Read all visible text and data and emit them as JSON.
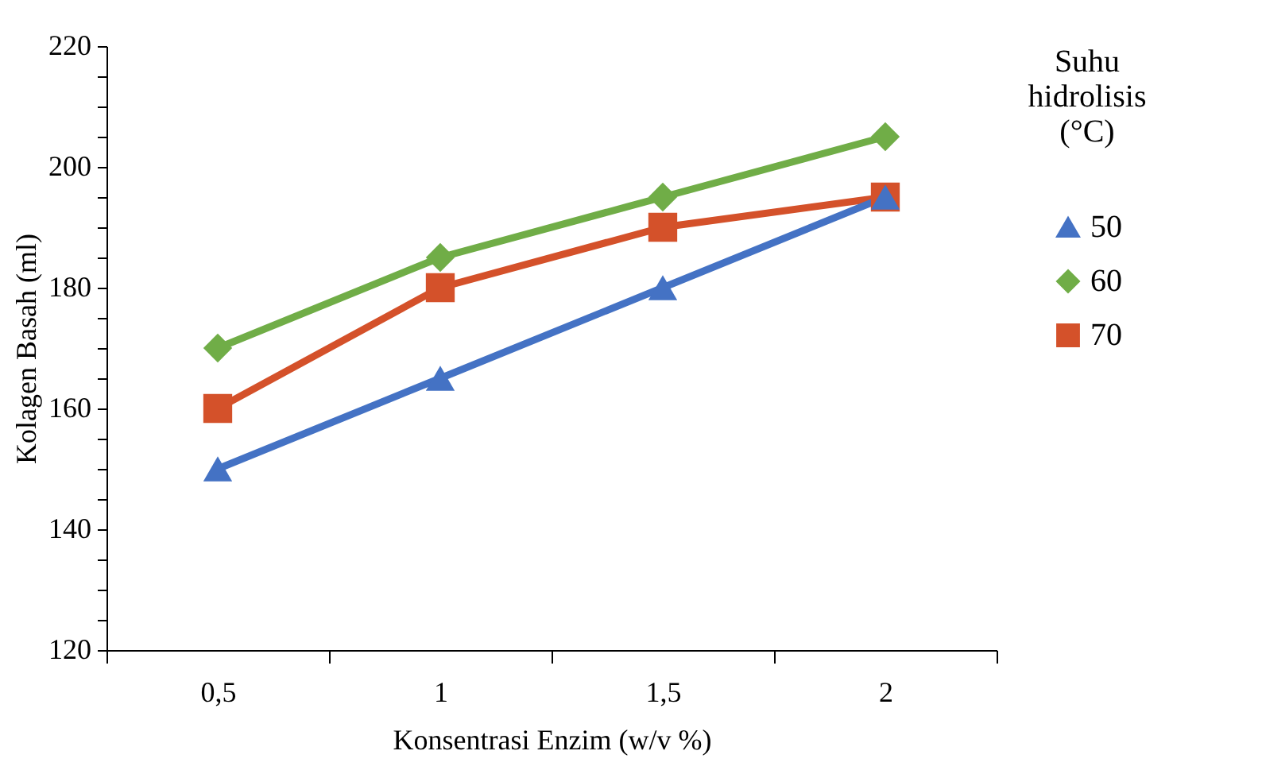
{
  "chart_data": {
    "type": "line",
    "xlabel": "Konsentrasi Enzim (w/v %)",
    "ylabel": "Kolagen Basah (ml)",
    "legend_title": "Suhu hidrolisis (°C)",
    "categories": [
      "0,5",
      "1",
      "1,5",
      "2"
    ],
    "series": [
      {
        "name": "50",
        "color": "#4472c4",
        "marker": "triangle",
        "values": [
          150,
          165,
          180,
          195
        ]
      },
      {
        "name": "60",
        "color": "#70ad47",
        "marker": "diamond",
        "values": [
          170,
          185,
          195,
          205
        ]
      },
      {
        "name": "70",
        "color": "#d4512a",
        "marker": "square",
        "values": [
          160,
          180,
          190,
          195
        ]
      }
    ],
    "ylim": [
      120,
      220
    ],
    "yticks": [
      120,
      {
        "value": 125,
        "label": null
      },
      {
        "value": 130,
        "label": null
      },
      {
        "value": 135,
        "label": null
      },
      140,
      {
        "value": 145,
        "label": null
      },
      {
        "value": 150,
        "label": null
      },
      {
        "value": 155,
        "label": null
      },
      160,
      {
        "value": 165,
        "label": null
      },
      {
        "value": 170,
        "label": null
      },
      {
        "value": 175,
        "label": null
      },
      180,
      {
        "value": 185,
        "label": null
      },
      {
        "value": 190,
        "label": null
      },
      {
        "value": 195,
        "label": null
      },
      200,
      {
        "value": 205,
        "label": null
      },
      {
        "value": 210,
        "label": null
      },
      {
        "value": 215,
        "label": null
      },
      220
    ],
    "grid": false,
    "legend": "right",
    "line_style": "solid"
  }
}
